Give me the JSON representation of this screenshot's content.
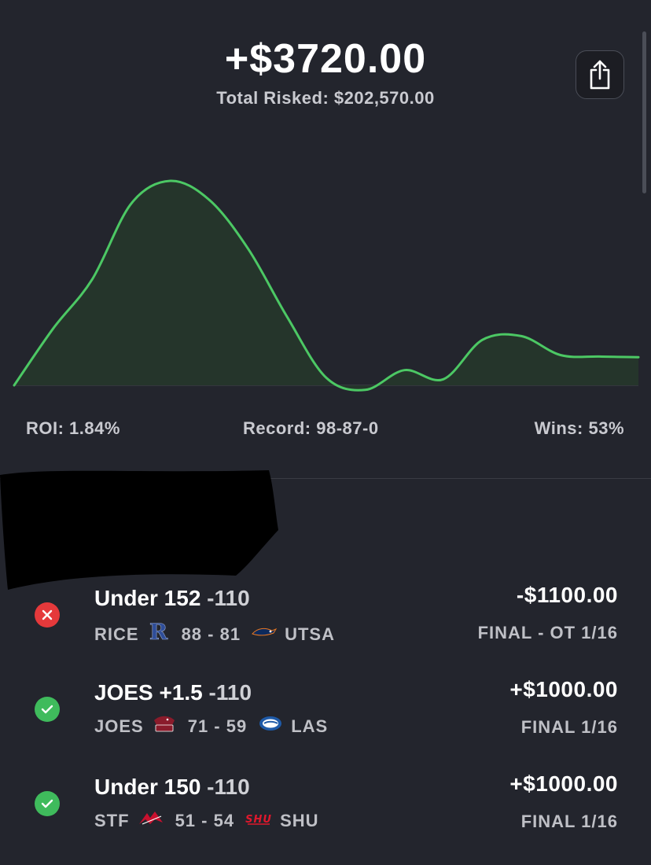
{
  "summary": {
    "profit": "+$3720.00",
    "total_risked": "Total Risked: $202,570.00"
  },
  "stats": {
    "roi": "ROI: 1.84%",
    "record": "Record: 98-87-0",
    "wins": "Wins: 53%"
  },
  "colors": {
    "background": "#23252d",
    "line": "#4cc864",
    "fill": "#25352b",
    "loss": "#e5393b",
    "win": "#3fbb5c"
  },
  "icons": {
    "share": "share-icon",
    "loss": "x-icon",
    "win": "check-icon"
  },
  "chart_data": {
    "type": "area",
    "x": [
      0,
      1,
      2,
      3,
      4,
      5,
      6,
      7,
      8,
      9,
      10,
      11,
      12,
      13,
      14,
      15,
      16
    ],
    "values": [
      0,
      7500,
      14000,
      24000,
      27000,
      24500,
      18000,
      9000,
      1000,
      -600,
      2000,
      800,
      6000,
      6500,
      4000,
      3800,
      3720
    ],
    "title": "",
    "xlabel": "",
    "ylabel": "",
    "grid": false,
    "legend": "none"
  },
  "bets": [
    {
      "result": "loss",
      "title_main": "Under 152",
      "title_odds": " -110",
      "team_away": "RICE",
      "logo_away": "rice-logo-icon",
      "score": "88 - 81",
      "logo_home": "utsa-logo-icon",
      "team_home": "UTSA",
      "amount": "-$1100.00",
      "final": "FINAL - OT 1/16"
    },
    {
      "result": "win",
      "title_main": "JOES +1.5",
      "title_odds": " -110",
      "team_away": "JOES",
      "logo_away": "sju-logo-icon",
      "score": "71 - 59",
      "logo_home": "las-logo-icon",
      "team_home": "LAS",
      "amount": "+$1000.00",
      "final": "FINAL 1/16"
    },
    {
      "result": "win",
      "title_main": "Under 150",
      "title_odds": " -110",
      "team_away": "STF",
      "logo_away": "stf-logo-icon",
      "score": "51 - 54",
      "logo_home": "shu-logo-icon",
      "team_home": "SHU",
      "amount": "+$1000.00",
      "final": "FINAL 1/16"
    }
  ]
}
